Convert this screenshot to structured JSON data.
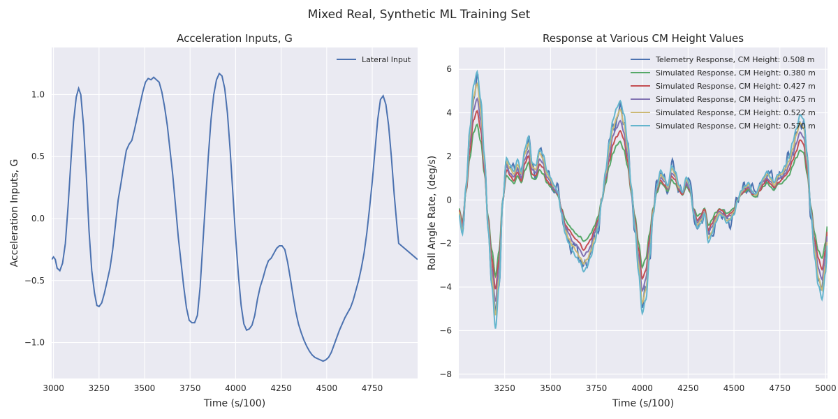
{
  "title": "Mixed Real, Synthetic ML Training Set",
  "chart_data": [
    {
      "type": "line",
      "title": "Acceleration Inputs, G",
      "xlabel": "Time (s/100)",
      "ylabel": "Acceleration Inputs, G",
      "xlim": [
        2990,
        4999
      ],
      "ylim": [
        -1.29,
        1.38
      ],
      "xticks": [
        3000,
        3250,
        3500,
        3750,
        4000,
        4250,
        4500,
        4750
      ],
      "yticks": [
        -1.0,
        -0.5,
        0.0,
        0.5,
        1.0
      ],
      "xtick_labels": [
        "3000",
        "3250",
        "3500",
        "3750",
        "4000",
        "4250",
        "4500",
        "4750"
      ],
      "ytick_labels": [
        "−1.0",
        "−0.5",
        "0.0",
        "0.5",
        "1.0"
      ],
      "grid": true,
      "legend": "top-right",
      "series": [
        {
          "name": "Lateral Input",
          "color": "#4c72b0",
          "points": [
            [
              2990,
              -0.33
            ],
            [
              3000,
              -0.31
            ],
            [
              3010,
              -0.33
            ],
            [
              3020,
              -0.4
            ],
            [
              3035,
              -0.42
            ],
            [
              3050,
              -0.36
            ],
            [
              3065,
              -0.2
            ],
            [
              3080,
              0.1
            ],
            [
              3095,
              0.45
            ],
            [
              3110,
              0.78
            ],
            [
              3125,
              0.98
            ],
            [
              3138,
              1.05
            ],
            [
              3150,
              1.0
            ],
            [
              3165,
              0.75
            ],
            [
              3180,
              0.35
            ],
            [
              3195,
              -0.1
            ],
            [
              3210,
              -0.42
            ],
            [
              3225,
              -0.6
            ],
            [
              3238,
              -0.7
            ],
            [
              3250,
              -0.71
            ],
            [
              3265,
              -0.68
            ],
            [
              3280,
              -0.6
            ],
            [
              3295,
              -0.5
            ],
            [
              3310,
              -0.4
            ],
            [
              3325,
              -0.25
            ],
            [
              3340,
              -0.05
            ],
            [
              3355,
              0.15
            ],
            [
              3370,
              0.28
            ],
            [
              3385,
              0.42
            ],
            [
              3400,
              0.55
            ],
            [
              3415,
              0.6
            ],
            [
              3430,
              0.63
            ],
            [
              3445,
              0.72
            ],
            [
              3460,
              0.82
            ],
            [
              3475,
              0.92
            ],
            [
              3490,
              1.02
            ],
            [
              3505,
              1.1
            ],
            [
              3520,
              1.13
            ],
            [
              3535,
              1.12
            ],
            [
              3550,
              1.14
            ],
            [
              3565,
              1.12
            ],
            [
              3580,
              1.1
            ],
            [
              3595,
              1.02
            ],
            [
              3610,
              0.9
            ],
            [
              3625,
              0.75
            ],
            [
              3640,
              0.55
            ],
            [
              3655,
              0.35
            ],
            [
              3670,
              0.1
            ],
            [
              3685,
              -0.15
            ],
            [
              3700,
              -0.35
            ],
            [
              3715,
              -0.55
            ],
            [
              3730,
              -0.72
            ],
            [
              3745,
              -0.82
            ],
            [
              3760,
              -0.84
            ],
            [
              3775,
              -0.84
            ],
            [
              3790,
              -0.78
            ],
            [
              3805,
              -0.55
            ],
            [
              3820,
              -0.2
            ],
            [
              3835,
              0.15
            ],
            [
              3850,
              0.5
            ],
            [
              3865,
              0.8
            ],
            [
              3880,
              1.0
            ],
            [
              3895,
              1.12
            ],
            [
              3910,
              1.17
            ],
            [
              3925,
              1.15
            ],
            [
              3940,
              1.05
            ],
            [
              3955,
              0.85
            ],
            [
              3970,
              0.55
            ],
            [
              3985,
              0.2
            ],
            [
              4000,
              -0.15
            ],
            [
              4015,
              -0.45
            ],
            [
              4030,
              -0.7
            ],
            [
              4045,
              -0.85
            ],
            [
              4060,
              -0.9
            ],
            [
              4075,
              -0.89
            ],
            [
              4090,
              -0.86
            ],
            [
              4105,
              -0.78
            ],
            [
              4120,
              -0.65
            ],
            [
              4135,
              -0.55
            ],
            [
              4150,
              -0.48
            ],
            [
              4165,
              -0.4
            ],
            [
              4180,
              -0.34
            ],
            [
              4195,
              -0.32
            ],
            [
              4210,
              -0.28
            ],
            [
              4225,
              -0.24
            ],
            [
              4240,
              -0.22
            ],
            [
              4255,
              -0.22
            ],
            [
              4270,
              -0.25
            ],
            [
              4285,
              -0.35
            ],
            [
              4300,
              -0.48
            ],
            [
              4315,
              -0.62
            ],
            [
              4330,
              -0.75
            ],
            [
              4345,
              -0.85
            ],
            [
              4360,
              -0.92
            ],
            [
              4375,
              -0.98
            ],
            [
              4390,
              -1.03
            ],
            [
              4405,
              -1.07
            ],
            [
              4420,
              -1.1
            ],
            [
              4435,
              -1.12
            ],
            [
              4450,
              -1.13
            ],
            [
              4465,
              -1.14
            ],
            [
              4480,
              -1.15
            ],
            [
              4495,
              -1.14
            ],
            [
              4510,
              -1.12
            ],
            [
              4525,
              -1.08
            ],
            [
              4540,
              -1.02
            ],
            [
              4555,
              -0.96
            ],
            [
              4570,
              -0.9
            ],
            [
              4585,
              -0.85
            ],
            [
              4600,
              -0.8
            ],
            [
              4615,
              -0.76
            ],
            [
              4630,
              -0.72
            ],
            [
              4645,
              -0.66
            ],
            [
              4660,
              -0.58
            ],
            [
              4675,
              -0.5
            ],
            [
              4690,
              -0.4
            ],
            [
              4705,
              -0.28
            ],
            [
              4720,
              -0.12
            ],
            [
              4735,
              0.08
            ],
            [
              4750,
              0.3
            ],
            [
              4765,
              0.55
            ],
            [
              4780,
              0.8
            ],
            [
              4795,
              0.96
            ],
            [
              4810,
              0.99
            ],
            [
              4825,
              0.92
            ],
            [
              4840,
              0.75
            ],
            [
              4855,
              0.5
            ],
            [
              4870,
              0.2
            ],
            [
              4885,
              -0.05
            ],
            [
              4895,
              -0.2
            ],
            [
              4999,
              -0.33
            ]
          ]
        }
      ]
    },
    {
      "type": "line",
      "title": "Response at Various CM Height Values",
      "xlabel": "Time (s/100)",
      "ylabel": "Roll Angle Rate, (deg/s)",
      "xlim": [
        3000,
        5010
      ],
      "ylim": [
        -8.2,
        7.0
      ],
      "xticks": [
        3250,
        3500,
        3750,
        4000,
        4250,
        4500,
        4750,
        5000
      ],
      "yticks": [
        -8,
        -6,
        -4,
        -2,
        0,
        2,
        4,
        6
      ],
      "xtick_labels": [
        "3250",
        "3500",
        "3750",
        "4000",
        "4250",
        "4500",
        "4750",
        "5000"
      ],
      "ytick_labels": [
        "−8",
        "−6",
        "−4",
        "−2",
        "0",
        "2",
        "4",
        "6"
      ],
      "grid": true,
      "legend": "top-right",
      "base_x": [
        3000,
        3020,
        3040,
        3060,
        3080,
        3100,
        3120,
        3140,
        3160,
        3180,
        3200,
        3220,
        3240,
        3260,
        3280,
        3300,
        3320,
        3340,
        3360,
        3380,
        3400,
        3420,
        3440,
        3460,
        3480,
        3500,
        3520,
        3540,
        3560,
        3580,
        3600,
        3620,
        3640,
        3660,
        3680,
        3700,
        3720,
        3740,
        3760,
        3780,
        3800,
        3820,
        3840,
        3860,
        3880,
        3900,
        3920,
        3940,
        3960,
        3980,
        4000,
        4020,
        4040,
        4060,
        4080,
        4100,
        4120,
        4140,
        4160,
        4180,
        4200,
        4220,
        4240,
        4260,
        4280,
        4300,
        4320,
        4340,
        4360,
        4380,
        4400,
        4420,
        4440,
        4460,
        4480,
        4500,
        4520,
        4540,
        4560,
        4580,
        4600,
        4620,
        4640,
        4660,
        4680,
        4700,
        4720,
        4740,
        4760,
        4780,
        4800,
        4820,
        4840,
        4860,
        4880,
        4900,
        4920,
        4940,
        4960,
        4980,
        5000,
        5010
      ],
      "base_y": [
        -0.5,
        -1.2,
        0.5,
        2.5,
        4.0,
        4.5,
        3.5,
        1.5,
        -1.0,
        -3.0,
        -4.5,
        -3.0,
        0.0,
        1.5,
        1.2,
        1.0,
        1.4,
        1.0,
        1.8,
        2.2,
        1.3,
        1.2,
        1.8,
        1.6,
        1.0,
        0.8,
        0.5,
        0.3,
        -0.5,
        -1.2,
        -1.5,
        -1.8,
        -2.0,
        -2.2,
        -2.5,
        -2.3,
        -2.0,
        -1.5,
        -1.0,
        0.0,
        1.0,
        2.0,
        2.8,
        3.2,
        3.5,
        3.0,
        2.0,
        0.5,
        -1.0,
        -2.5,
        -4.0,
        -3.5,
        -2.0,
        -0.5,
        0.5,
        1.0,
        0.8,
        0.5,
        1.2,
        1.0,
        0.5,
        0.3,
        0.8,
        0.5,
        -0.5,
        -1.0,
        -0.8,
        -0.5,
        -1.5,
        -1.2,
        -0.8,
        -0.5,
        -0.6,
        -0.8,
        -0.7,
        -0.5,
        0.0,
        0.3,
        0.5,
        0.6,
        0.3,
        0.2,
        0.5,
        0.8,
        1.0,
        0.8,
        0.6,
        0.9,
        1.0,
        1.2,
        1.5,
        2.0,
        2.5,
        3.0,
        2.8,
        1.5,
        -0.5,
        -2.0,
        -3.0,
        -3.5,
        -2.5,
        -1.5
      ],
      "series": [
        {
          "name": "Telemetry Response, CM Height: 0.508 m",
          "color": "#4c72b0",
          "scale": 1.2,
          "noise": 0.45
        },
        {
          "name": "Simulated Response, CM Height: 0.380 m",
          "color": "#55a868",
          "scale": 0.77,
          "noise": 0.05
        },
        {
          "name": "Simulated Response, CM Height: 0.427 m",
          "color": "#c44e52",
          "scale": 0.91,
          "noise": 0.05
        },
        {
          "name": "Simulated Response, CM Height: 0.475 m",
          "color": "#8172b2",
          "scale": 1.04,
          "noise": 0.05
        },
        {
          "name": "Simulated Response, CM Height: 0.522 m",
          "color": "#ccb974",
          "scale": 1.18,
          "noise": 0.05
        },
        {
          "name": "Simulated Response, CM Height: 0.570 m",
          "color": "#64b5cd",
          "scale": 1.31,
          "noise": 0.05
        }
      ]
    }
  ]
}
